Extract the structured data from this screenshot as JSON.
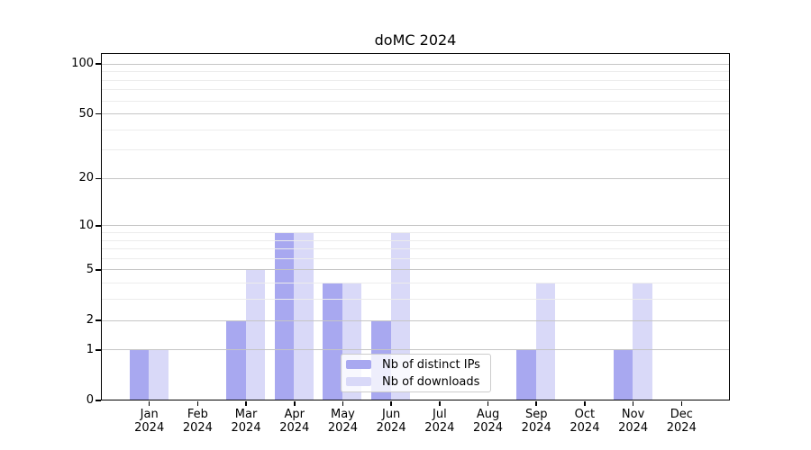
{
  "title": "doMC 2024",
  "chart_data": {
    "type": "bar",
    "title": "doMC 2024",
    "categories": [
      "Jan",
      "Feb",
      "Mar",
      "Apr",
      "May",
      "Jun",
      "Jul",
      "Aug",
      "Sep",
      "Oct",
      "Nov",
      "Dec"
    ],
    "category_year": "2024",
    "series": [
      {
        "name": "Nb of distinct IPs",
        "color": "#a8a8f0",
        "values": [
          1,
          0,
          2,
          9,
          4,
          2,
          0,
          0,
          1,
          0,
          1,
          0
        ]
      },
      {
        "name": "Nb of downloads",
        "color": "#d9d9f8",
        "values": [
          1,
          0,
          5,
          9,
          4,
          9,
          0,
          0,
          4,
          0,
          4,
          0
        ]
      }
    ],
    "xlabel": "",
    "ylabel": "",
    "y_scale": "log1p",
    "ylim": [
      0,
      116
    ],
    "y_ticks": [
      0,
      1,
      2,
      5,
      10,
      20,
      50,
      100
    ],
    "y_minor_gridlines": [
      3,
      4,
      6,
      7,
      8,
      9,
      30,
      40,
      60,
      70,
      80,
      90
    ],
    "grid": true,
    "grid_above_bars": true,
    "legend_position": "lower center",
    "colors": {
      "grid_major": "#c5c5c5",
      "grid_minor": "#ececec",
      "axis": "#000000",
      "background": "#ffffff"
    }
  }
}
